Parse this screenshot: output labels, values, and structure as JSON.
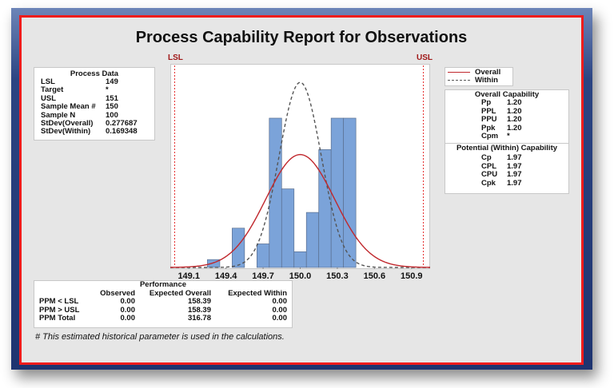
{
  "title": "Process Capability Report for Observations",
  "process_data": {
    "header": "Process Data",
    "rows": [
      {
        "label": "LSL",
        "value": "149"
      },
      {
        "label": "Target",
        "value": "*"
      },
      {
        "label": "USL",
        "value": "151"
      },
      {
        "label": "Sample Mean #",
        "value": "150"
      },
      {
        "label": "Sample N",
        "value": "100"
      },
      {
        "label": "StDev(Overall)",
        "value": "0.277687"
      },
      {
        "label": "StDev(Within)",
        "value": "0.169348"
      }
    ]
  },
  "legend": {
    "overall": "Overall",
    "within": "Within",
    "overall_color": "#c0282d",
    "within_color": "#555555"
  },
  "overall_capability": {
    "header": "Overall Capability",
    "rows": [
      {
        "label": "Pp",
        "value": "1.20"
      },
      {
        "label": "PPL",
        "value": "1.20"
      },
      {
        "label": "PPU",
        "value": "1.20"
      },
      {
        "label": "Ppk",
        "value": "1.20"
      },
      {
        "label": "Cpm",
        "value": "*"
      }
    ]
  },
  "potential_capability": {
    "header": "Potential (Within) Capability",
    "rows": [
      {
        "label": "Cp",
        "value": "1.97"
      },
      {
        "label": "CPL",
        "value": "1.97"
      },
      {
        "label": "CPU",
        "value": "1.97"
      },
      {
        "label": "Cpk",
        "value": "1.97"
      }
    ]
  },
  "performance": {
    "header": "Performance",
    "columns": [
      "",
      "Observed",
      "Expected Overall",
      "Expected Within"
    ],
    "rows": [
      {
        "label": "PPM < LSL",
        "observed": "0.00",
        "expected_overall": "158.39",
        "expected_within": "0.00"
      },
      {
        "label": "PPM > USL",
        "observed": "0.00",
        "expected_overall": "158.39",
        "expected_within": "0.00"
      },
      {
        "label": "PPM Total",
        "observed": "0.00",
        "expected_overall": "316.78",
        "expected_within": "0.00"
      }
    ]
  },
  "footnote": "# This estimated historical parameter is used in the calculations.",
  "spec_labels": {
    "lsl": "LSL",
    "usl": "USL"
  },
  "chart_data": {
    "type": "bar",
    "title": "Process Capability Report for Observations",
    "xlabel": "",
    "ylabel": "",
    "bin_edges": [
      149.25,
      149.35,
      149.45,
      149.55,
      149.65,
      149.75,
      149.85,
      149.95,
      150.05,
      150.15,
      150.25,
      150.35,
      150.45
    ],
    "categories": [
      "149.3",
      "149.4",
      "149.5",
      "149.6",
      "149.7",
      "149.8",
      "149.9",
      "150.0",
      "150.1",
      "150.2",
      "150.3",
      "150.4"
    ],
    "values": [
      1,
      0,
      5,
      0,
      3,
      19,
      10,
      2,
      7,
      15,
      19,
      19
    ],
    "x_ticks": [
      "149.1",
      "149.4",
      "149.7",
      "150.0",
      "150.3",
      "150.6",
      "150.9"
    ],
    "xlim": [
      148.95,
      151.05
    ],
    "lsl": 149,
    "usl": 151,
    "overlays": [
      {
        "name": "Overall",
        "type": "normal_curve",
        "mean": 150,
        "stdev": 0.277687,
        "style": "solid",
        "color": "#c0282d"
      },
      {
        "name": "Within",
        "type": "normal_curve",
        "mean": 150,
        "stdev": 0.169348,
        "style": "dashed",
        "color": "#555555"
      }
    ],
    "bar_color": "#7ba3d9",
    "grid": false,
    "legend_position": "right"
  }
}
